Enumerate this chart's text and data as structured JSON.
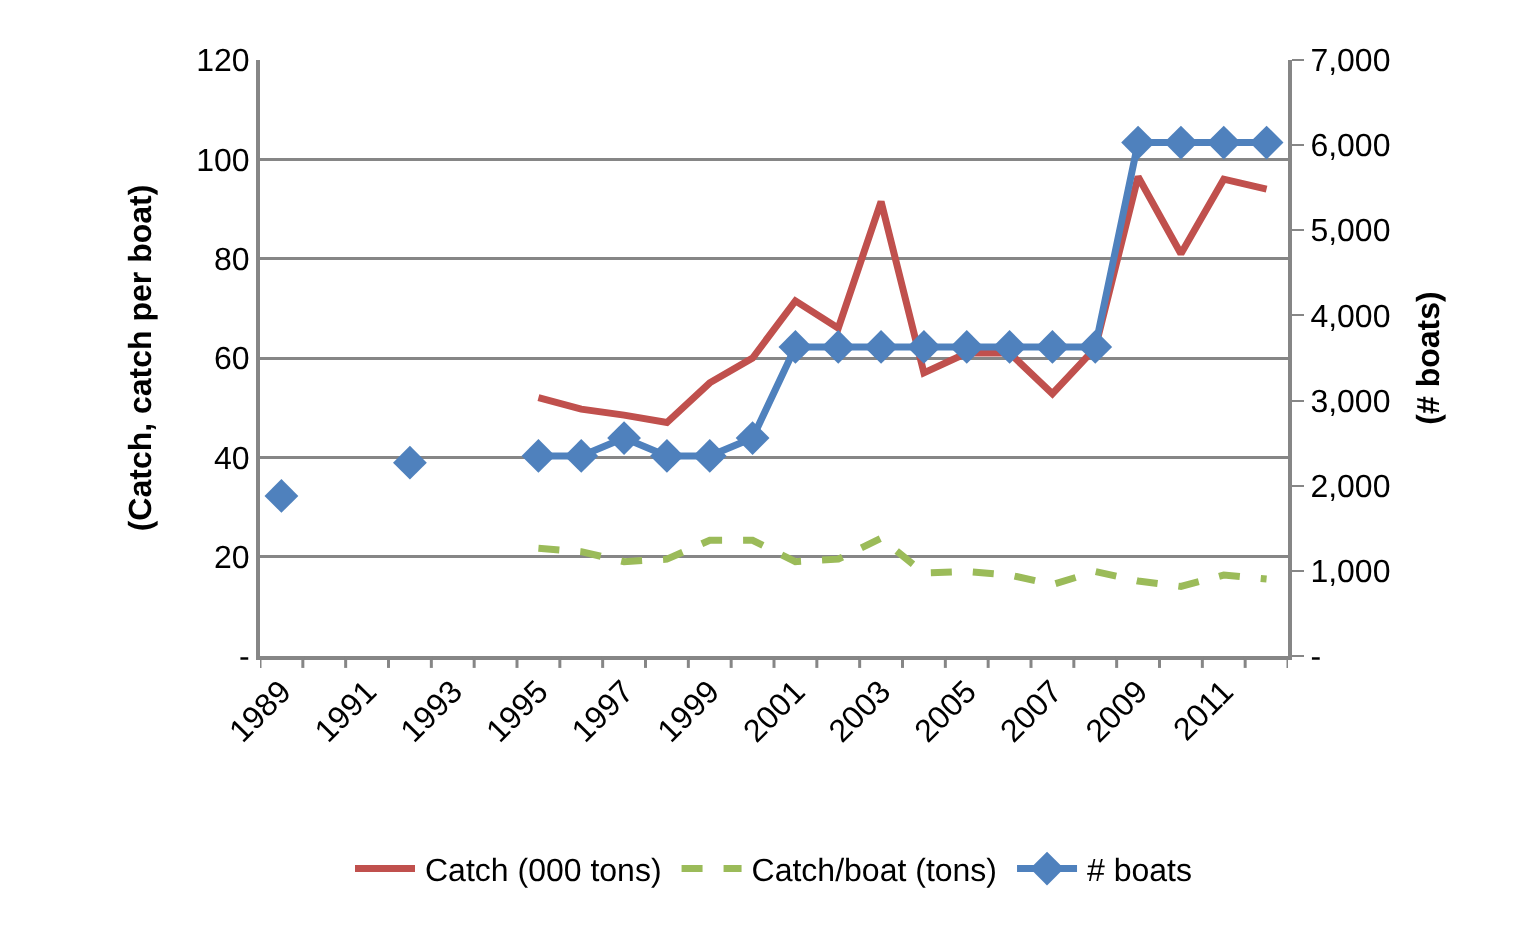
{
  "chart_data": {
    "type": "line",
    "categories": [
      "1989",
      null,
      "1991",
      null,
      "1993",
      null,
      "1995",
      null,
      "1997",
      null,
      "1999",
      null,
      "2001",
      null,
      "2003",
      null,
      "2005",
      null,
      "2007",
      null,
      "2009",
      null,
      "2011",
      null
    ],
    "series": [
      {
        "name": "Catch (000 tons)",
        "color": "#c0504d",
        "line_style": "solid",
        "marker": "none",
        "values": [
          null,
          null,
          null,
          null,
          null,
          null,
          52,
          49.7,
          48.5,
          47,
          55,
          60,
          71.5,
          66,
          91.5,
          57,
          61,
          61,
          52.8,
          62,
          96.5,
          81,
          96,
          94
        ]
      },
      {
        "name": "Catch/boat (tons)",
        "color": "#9bbb59",
        "line_style": "dashed",
        "marker": "none",
        "values": [
          null,
          null,
          null,
          null,
          null,
          null,
          21.7,
          21,
          19,
          19.5,
          23.3,
          23.3,
          19,
          19.5,
          23.7,
          16.7,
          17,
          16.3,
          14.4,
          17,
          15.1,
          14,
          16.3,
          15.5
        ]
      },
      {
        "name": "# boats",
        "color": "#4f81bd",
        "line_style": "solid",
        "marker": "diamond",
        "axis": "y2",
        "values": [
          1880,
          null,
          null,
          2270,
          null,
          null,
          2350,
          2350,
          2560,
          2350,
          2350,
          2560,
          3630,
          3630,
          3630,
          3630,
          3630,
          3630,
          3630,
          3630,
          6030,
          6030,
          6030,
          6030
        ]
      }
    ],
    "ylabel": "(Catch, catch per boat)",
    "y2label": "(# boats)",
    "ylim": [
      0,
      120
    ],
    "yticks": [
      {
        "value": 0,
        "label": "-"
      },
      20,
      40,
      60,
      80,
      100,
      120
    ],
    "y2lim": [
      0,
      7000
    ],
    "y2ticks": [
      {
        "value": 0,
        "label": "-"
      },
      {
        "value": 1000,
        "label": "1,000"
      },
      {
        "value": 2000,
        "label": "2,000"
      },
      {
        "value": 3000,
        "label": "3,000"
      },
      {
        "value": 4000,
        "label": "4,000"
      },
      {
        "value": 5000,
        "label": "5,000"
      },
      {
        "value": 6000,
        "label": "6,000"
      },
      {
        "value": 7000,
        "label": "7,000"
      }
    ],
    "grid": "y",
    "legend": "bottom"
  }
}
